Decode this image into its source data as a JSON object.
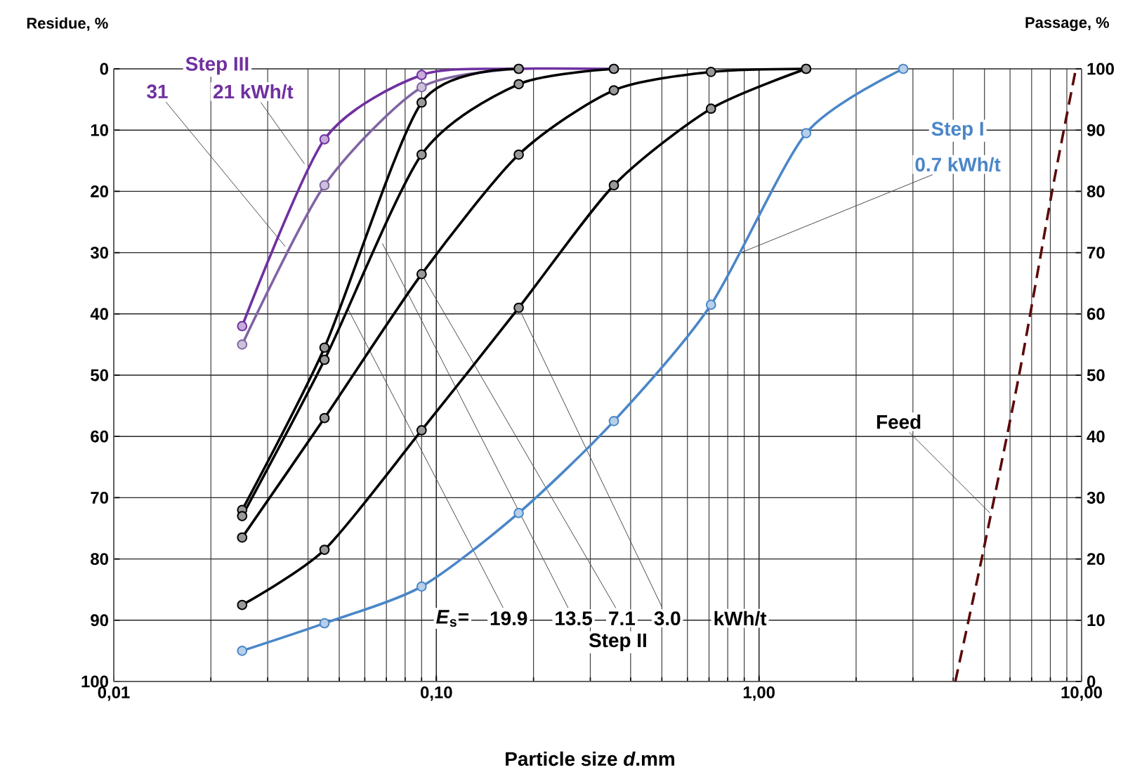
{
  "chart_data": {
    "type": "line",
    "xlabel": "Particle size *d*.mm",
    "ylabel": "Residue, %",
    "y2label": "Passage, %",
    "log": "x",
    "grid": true,
    "marker": "circle",
    "line_style": "solid",
    "xlim": [
      0.01,
      10
    ],
    "xticks": [
      {
        "value": 0.01,
        "label": "0,01"
      },
      {
        "value": 0.1,
        "label": "0,10"
      },
      {
        "value": 1,
        "label": "1,00"
      },
      {
        "value": 10,
        "label": "10,00"
      }
    ],
    "ylim": [
      100,
      0
    ],
    "yticks": [
      0,
      10,
      20,
      30,
      40,
      50,
      60,
      70,
      80,
      90,
      100
    ],
    "y2lim": [
      0,
      100
    ],
    "y2ticks": [
      0,
      10,
      20,
      30,
      40,
      50,
      60,
      70,
      80,
      90,
      100
    ],
    "series": [
      {
        "color": "#7030a0",
        "x": [
          0.025,
          0.045,
          0.09,
          0.18,
          0.355
        ],
        "values": [
          42,
          11.5,
          1,
          0,
          0
        ]
      },
      {
        "color": "#8064a2",
        "x": [
          0.025,
          0.045,
          0.09,
          0.18
        ],
        "values": [
          45,
          19,
          3,
          0
        ]
      },
      {
        "color": "#000000",
        "x": [
          0.025,
          0.045,
          0.09,
          0.18
        ],
        "values": [
          72,
          45.5,
          5.5,
          0
        ]
      },
      {
        "color": "#000000",
        "x": [
          0.025,
          0.045,
          0.09,
          0.18,
          0.355
        ],
        "values": [
          73,
          47.5,
          14,
          2.5,
          0
        ]
      },
      {
        "color": "#000000",
        "x": [
          0.025,
          0.045,
          0.09,
          0.18,
          0.355,
          0.71,
          1.4
        ],
        "values": [
          76.5,
          57,
          33.5,
          14,
          3.5,
          0.5,
          0
        ]
      },
      {
        "color": "#000000",
        "x": [
          0.025,
          0.045,
          0.09,
          0.18,
          0.355,
          0.71,
          1.4
        ],
        "values": [
          87.5,
          78.5,
          59,
          39,
          19,
          6.5,
          0
        ]
      },
      {
        "color": "#4a86c8",
        "x": [
          0.025,
          0.045,
          0.09,
          0.18,
          0.355,
          0.71,
          1.4,
          2.8
        ],
        "values": [
          95,
          90.5,
          84.5,
          72.5,
          57.5,
          38.5,
          10.5,
          0
        ]
      },
      {
        "color": "#5c0a0a",
        "marker": "none",
        "line_style": "dashed",
        "x": [
          4.06,
          4.9,
          6.4,
          8.1,
          9.6
        ],
        "values": [
          100,
          80,
          50,
          20,
          0
        ]
      }
    ],
    "annotations": [
      "Step III",
      {
        "text": "31",
        "x": 0.034,
        "y": 29
      },
      {
        "text": "21 kWh/t",
        "x": 0.039,
        "y": 15.5
      },
      "Step I",
      {
        "text": "0.7 kWh/t",
        "x": 0.88,
        "y": 30
      },
      "*E*$_{s}$=",
      {
        "text": "19.9",
        "x": 0.053,
        "y": 39
      },
      {
        "text": "13.5",
        "x": 0.068,
        "y": 28.5
      },
      {
        "text": "7.1",
        "x": 0.09,
        "y": 33.5
      },
      {
        "text": "3.0",
        "x": 0.18,
        "y": 39
      },
      "kWh/t",
      "Step II",
      {
        "text": "Feed",
        "x": 5.2,
        "y": 72.5
      }
    ]
  }
}
